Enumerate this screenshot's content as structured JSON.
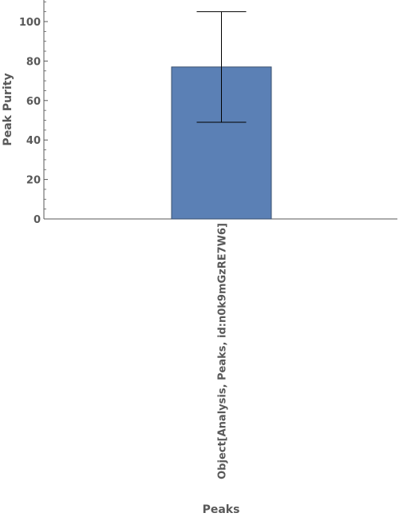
{
  "chart_data": {
    "type": "bar",
    "categories": [
      "Object[Analysis, Peaks, id:n0k9mGzRE7W6]"
    ],
    "values": [
      77
    ],
    "error_bars": [
      {
        "low": 49,
        "high": 105
      }
    ],
    "xlabel": "Peaks",
    "ylabel": "Peak Purity",
    "ylim": [
      0,
      110
    ],
    "y_ticks": [
      0,
      20,
      40,
      60,
      80,
      100
    ],
    "grid": false,
    "legend": "none",
    "colors": {
      "bar": "#5b80b5",
      "bar_edge": "#3a4f6e",
      "axis": "#595959",
      "text": "#595959",
      "error_bar": "#000000"
    }
  }
}
